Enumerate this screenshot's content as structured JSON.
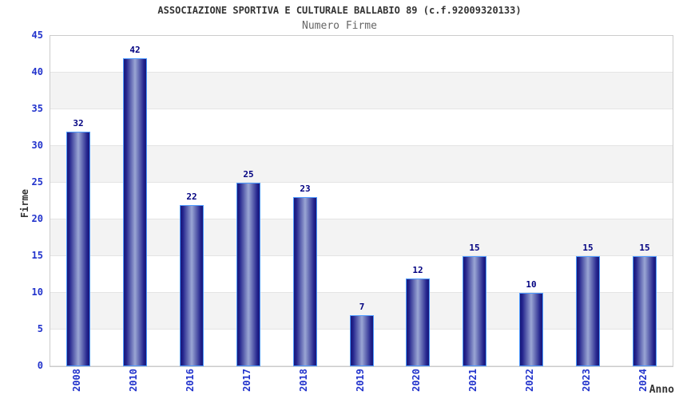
{
  "header": {
    "title": "ASSOCIAZIONE SPORTIVA E CULTURALE BALLABIO 89 (c.f.92009320133)",
    "subtitle": "Numero Firme"
  },
  "chart_data": {
    "type": "bar",
    "title": "ASSOCIAZIONE SPORTIVA E CULTURALE BALLABIO 89 (c.f.92009320133)",
    "subtitle": "Numero Firme",
    "categories": [
      "2008",
      "2010",
      "2016",
      "2017",
      "2018",
      "2019",
      "2020",
      "2021",
      "2022",
      "2023",
      "2024"
    ],
    "values": [
      32,
      42,
      22,
      25,
      23,
      7,
      12,
      15,
      10,
      15,
      15
    ],
    "xlabel": "Anno",
    "ylabel": "Firme",
    "ylim": [
      0,
      45
    ],
    "ytick_step": 5,
    "grid": "alternating horizontal bands every 5 units, white and light gray",
    "legend": "none",
    "colors": {
      "bar_edge_dark": "#181878",
      "bar_center_light": "#9aa6d4",
      "bar_border": "#4d9aff",
      "value_label": "#000080",
      "axis_tick_label": "#2233cc",
      "title_text": "#333333",
      "subtitle_text": "#666666",
      "band_gray": "#f3f3f3",
      "band_white": "#ffffff",
      "gridline": "#e4e4e4",
      "plot_border": "#cccccc",
      "background": "#ffffff"
    }
  }
}
